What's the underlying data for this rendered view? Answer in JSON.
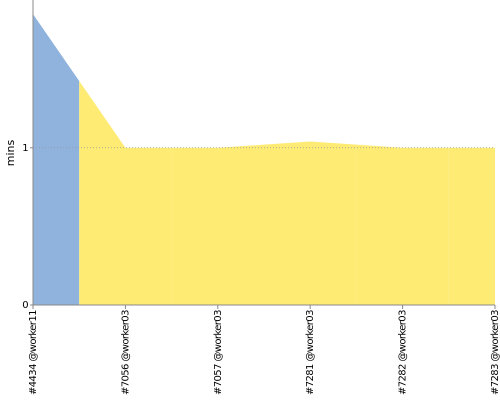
{
  "chart_data": {
    "type": "area",
    "y_label": "mins",
    "categories": [
      "#4434 @worker11",
      "#7056 @worker03",
      "#7057 @worker03",
      "#7281 @worker03",
      "#7282 @worker03",
      "#7283 @worker03"
    ],
    "values": [
      1.85,
      1.0,
      1.0,
      1.04,
      1.0,
      1.0
    ],
    "colors": [
      "#8fb3dc",
      "#fdeb74",
      "#fdeb74",
      "#fdeb74",
      "#fdeb74",
      "#fdeb74"
    ],
    "ylim": [
      0,
      1.94
    ],
    "yticks": [
      0,
      1
    ],
    "grid": true
  }
}
